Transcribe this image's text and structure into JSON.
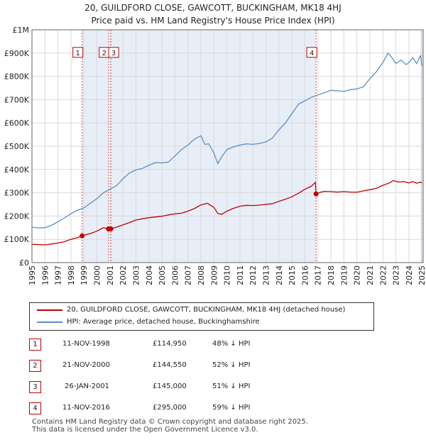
{
  "title_line1": "20, GUILDFORD CLOSE, GAWCOTT, BUCKINGHAM, MK18 4HJ",
  "title_line2": "Price paid vs. HM Land Registry's House Price Index (HPI)",
  "chart_data": {
    "type": "line",
    "title": "20, GUILDFORD CLOSE, GAWCOTT, BUCKINGHAM, MK18 4HJ — Price paid vs. HM Land Registry's House Price Index (HPI)",
    "xlabel": "",
    "ylabel": "",
    "xlim": [
      1995,
      2025.1
    ],
    "ylim": [
      0,
      1000000
    ],
    "y_ticks": [
      0,
      100000,
      200000,
      300000,
      400000,
      500000,
      600000,
      700000,
      800000,
      900000,
      1000000
    ],
    "y_tick_labels": [
      "£0",
      "£100K",
      "£200K",
      "£300K",
      "£400K",
      "£500K",
      "£600K",
      "£700K",
      "£800K",
      "£900K",
      "£1M"
    ],
    "x_ticks": [
      1995,
      1996,
      1997,
      1998,
      1999,
      2000,
      2001,
      2002,
      2003,
      2004,
      2005,
      2006,
      2007,
      2008,
      2009,
      2010,
      2011,
      2012,
      2013,
      2014,
      2015,
      2016,
      2017,
      2018,
      2019,
      2020,
      2021,
      2022,
      2023,
      2024,
      2025
    ],
    "grid": true,
    "legend_position": "below",
    "series": [
      {
        "name": "20, GUILDFORD CLOSE, GAWCOTT, BUCKINGHAM, MK18 4HJ (detached house)",
        "color": "#c00000",
        "x": [
          1995.0,
          1995.5,
          1996.0,
          1996.5,
          1997.0,
          1997.5,
          1998.0,
          1998.5,
          1998.86,
          1999.5,
          2000.0,
          2000.5,
          2000.89,
          2001.07,
          2001.5,
          2002.0,
          2002.5,
          2003.0,
          2003.5,
          2004.0,
          2004.5,
          2005.0,
          2005.5,
          2006.0,
          2006.5,
          2007.0,
          2007.5,
          2008.0,
          2008.5,
          2009.0,
          2009.3,
          2009.6,
          2010.0,
          2010.5,
          2011.0,
          2011.5,
          2012.0,
          2012.5,
          2013.0,
          2013.5,
          2014.0,
          2014.5,
          2015.0,
          2015.5,
          2016.0,
          2016.5,
          2016.8,
          2016.86,
          2017.2,
          2017.5,
          2018.0,
          2018.5,
          2019.0,
          2019.5,
          2020.0,
          2020.5,
          2021.0,
          2021.5,
          2022.0,
          2022.5,
          2022.8,
          2023.2,
          2023.6,
          2024.0,
          2024.3,
          2024.6,
          2024.9,
          2025.0
        ],
        "values": [
          79000,
          77000,
          76000,
          80000,
          84000,
          90000,
          100000,
          107000,
          114950,
          125000,
          135000,
          150000,
          144550,
          145000,
          152000,
          162000,
          172000,
          183000,
          188000,
          193000,
          196000,
          199000,
          205000,
          209000,
          212000,
          221000,
          232000,
          248000,
          255000,
          237000,
          211000,
          207000,
          221000,
          233000,
          242000,
          246000,
          245000,
          247000,
          250000,
          253000,
          263000,
          272000,
          283000,
          298000,
          315000,
          328000,
          345000,
          295000,
          302000,
          306000,
          305000,
          303000,
          305000,
          303000,
          302000,
          308000,
          313000,
          319000,
          332000,
          342000,
          352000,
          346000,
          348000,
          342000,
          348000,
          341000,
          346000,
          342000
        ]
      },
      {
        "name": "HPI: Average price, detached house, Buckinghamshire",
        "color": "#5b8ec4",
        "x": [
          1995.0,
          1995.5,
          1996.0,
          1996.5,
          1997.0,
          1997.5,
          1998.0,
          1998.5,
          1999.0,
          1999.5,
          2000.0,
          2000.5,
          2001.0,
          2001.5,
          2002.0,
          2002.5,
          2003.0,
          2003.5,
          2004.0,
          2004.5,
          2005.0,
          2005.5,
          2006.0,
          2006.5,
          2007.0,
          2007.5,
          2008.0,
          2008.3,
          2008.6,
          2009.0,
          2009.3,
          2009.6,
          2010.0,
          2010.5,
          2011.0,
          2011.5,
          2012.0,
          2012.5,
          2013.0,
          2013.5,
          2014.0,
          2014.5,
          2015.0,
          2015.5,
          2016.0,
          2016.5,
          2017.0,
          2017.5,
          2018.0,
          2018.5,
          2019.0,
          2019.5,
          2020.0,
          2020.5,
          2021.0,
          2021.5,
          2022.0,
          2022.4,
          2022.7,
          2023.0,
          2023.4,
          2023.8,
          2024.0,
          2024.3,
          2024.6,
          2024.9,
          2025.0
        ],
        "values": [
          152000,
          149000,
          150000,
          160000,
          175000,
          192000,
          210000,
          225000,
          235000,
          255000,
          275000,
          300000,
          315000,
          330000,
          360000,
          385000,
          398000,
          405000,
          418000,
          430000,
          428000,
          432000,
          458000,
          485000,
          505000,
          530000,
          545000,
          508000,
          510000,
          470000,
          425000,
          455000,
          485000,
          497000,
          505000,
          510000,
          508000,
          512000,
          518000,
          535000,
          570000,
          600000,
          640000,
          680000,
          695000,
          710000,
          720000,
          730000,
          740000,
          738000,
          735000,
          743000,
          746000,
          755000,
          790000,
          820000,
          860000,
          900000,
          880000,
          855000,
          870000,
          850000,
          860000,
          880000,
          855000,
          890000,
          845000
        ]
      }
    ],
    "transactions": [
      {
        "label": "1",
        "date": "11-NOV-1998",
        "x": 1998.86,
        "price": 114950
      },
      {
        "label": "2",
        "date": "21-NOV-2000",
        "x": 2000.89,
        "price": 144550
      },
      {
        "label": "3",
        "date": "26-JAN-2001",
        "x": 2001.07,
        "price": 145000
      },
      {
        "label": "4",
        "date": "11-NOV-2016",
        "x": 2016.86,
        "price": 295000
      }
    ]
  },
  "legend": {
    "property_label": "20, GUILDFORD CLOSE, GAWCOTT, BUCKINGHAM, MK18 4HJ (detached house)",
    "hpi_label": "HPI: Average price, detached house, Buckinghamshire"
  },
  "sales": [
    {
      "num": "1",
      "date": "11-NOV-1998",
      "price": "£114,950",
      "hpi": "48% ↓ HPI"
    },
    {
      "num": "2",
      "date": "21-NOV-2000",
      "price": "£144,550",
      "hpi": "52% ↓ HPI"
    },
    {
      "num": "3",
      "date": "26-JAN-2001",
      "price": "£145,000",
      "hpi": "51% ↓ HPI"
    },
    {
      "num": "4",
      "date": "11-NOV-2016",
      "price": "£295,000",
      "hpi": "59% ↓ HPI"
    }
  ],
  "footer_line1": "Contains HM Land Registry data © Crown copyright and database right 2025.",
  "footer_line2": "This data is licensed under the Open Government Licence v3.0."
}
